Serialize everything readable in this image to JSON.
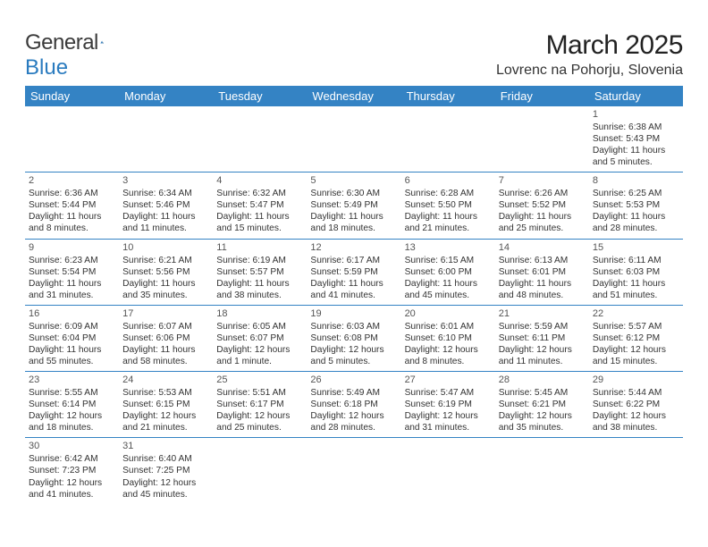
{
  "logo": {
    "text1": "General",
    "text2": "Blue"
  },
  "title": "March 2025",
  "subtitle": "Lovrenc na Pohorju, Slovenia",
  "colors": {
    "header_bg": "#3483c4",
    "header_fg": "#ffffff",
    "rule": "#3483c4",
    "title_color": "#222222",
    "text_color": "#333333",
    "logo_gray": "#3a3a3a",
    "logo_blue": "#2a7bbf"
  },
  "day_headers": [
    "Sunday",
    "Monday",
    "Tuesday",
    "Wednesday",
    "Thursday",
    "Friday",
    "Saturday"
  ],
  "weeks": [
    [
      null,
      null,
      null,
      null,
      null,
      null,
      {
        "n": "1",
        "sr": "Sunrise: 6:38 AM",
        "ss": "Sunset: 5:43 PM",
        "dl": "Daylight: 11 hours and 5 minutes."
      }
    ],
    [
      {
        "n": "2",
        "sr": "Sunrise: 6:36 AM",
        "ss": "Sunset: 5:44 PM",
        "dl": "Daylight: 11 hours and 8 minutes."
      },
      {
        "n": "3",
        "sr": "Sunrise: 6:34 AM",
        "ss": "Sunset: 5:46 PM",
        "dl": "Daylight: 11 hours and 11 minutes."
      },
      {
        "n": "4",
        "sr": "Sunrise: 6:32 AM",
        "ss": "Sunset: 5:47 PM",
        "dl": "Daylight: 11 hours and 15 minutes."
      },
      {
        "n": "5",
        "sr": "Sunrise: 6:30 AM",
        "ss": "Sunset: 5:49 PM",
        "dl": "Daylight: 11 hours and 18 minutes."
      },
      {
        "n": "6",
        "sr": "Sunrise: 6:28 AM",
        "ss": "Sunset: 5:50 PM",
        "dl": "Daylight: 11 hours and 21 minutes."
      },
      {
        "n": "7",
        "sr": "Sunrise: 6:26 AM",
        "ss": "Sunset: 5:52 PM",
        "dl": "Daylight: 11 hours and 25 minutes."
      },
      {
        "n": "8",
        "sr": "Sunrise: 6:25 AM",
        "ss": "Sunset: 5:53 PM",
        "dl": "Daylight: 11 hours and 28 minutes."
      }
    ],
    [
      {
        "n": "9",
        "sr": "Sunrise: 6:23 AM",
        "ss": "Sunset: 5:54 PM",
        "dl": "Daylight: 11 hours and 31 minutes."
      },
      {
        "n": "10",
        "sr": "Sunrise: 6:21 AM",
        "ss": "Sunset: 5:56 PM",
        "dl": "Daylight: 11 hours and 35 minutes."
      },
      {
        "n": "11",
        "sr": "Sunrise: 6:19 AM",
        "ss": "Sunset: 5:57 PM",
        "dl": "Daylight: 11 hours and 38 minutes."
      },
      {
        "n": "12",
        "sr": "Sunrise: 6:17 AM",
        "ss": "Sunset: 5:59 PM",
        "dl": "Daylight: 11 hours and 41 minutes."
      },
      {
        "n": "13",
        "sr": "Sunrise: 6:15 AM",
        "ss": "Sunset: 6:00 PM",
        "dl": "Daylight: 11 hours and 45 minutes."
      },
      {
        "n": "14",
        "sr": "Sunrise: 6:13 AM",
        "ss": "Sunset: 6:01 PM",
        "dl": "Daylight: 11 hours and 48 minutes."
      },
      {
        "n": "15",
        "sr": "Sunrise: 6:11 AM",
        "ss": "Sunset: 6:03 PM",
        "dl": "Daylight: 11 hours and 51 minutes."
      }
    ],
    [
      {
        "n": "16",
        "sr": "Sunrise: 6:09 AM",
        "ss": "Sunset: 6:04 PM",
        "dl": "Daylight: 11 hours and 55 minutes."
      },
      {
        "n": "17",
        "sr": "Sunrise: 6:07 AM",
        "ss": "Sunset: 6:06 PM",
        "dl": "Daylight: 11 hours and 58 minutes."
      },
      {
        "n": "18",
        "sr": "Sunrise: 6:05 AM",
        "ss": "Sunset: 6:07 PM",
        "dl": "Daylight: 12 hours and 1 minute."
      },
      {
        "n": "19",
        "sr": "Sunrise: 6:03 AM",
        "ss": "Sunset: 6:08 PM",
        "dl": "Daylight: 12 hours and 5 minutes."
      },
      {
        "n": "20",
        "sr": "Sunrise: 6:01 AM",
        "ss": "Sunset: 6:10 PM",
        "dl": "Daylight: 12 hours and 8 minutes."
      },
      {
        "n": "21",
        "sr": "Sunrise: 5:59 AM",
        "ss": "Sunset: 6:11 PM",
        "dl": "Daylight: 12 hours and 11 minutes."
      },
      {
        "n": "22",
        "sr": "Sunrise: 5:57 AM",
        "ss": "Sunset: 6:12 PM",
        "dl": "Daylight: 12 hours and 15 minutes."
      }
    ],
    [
      {
        "n": "23",
        "sr": "Sunrise: 5:55 AM",
        "ss": "Sunset: 6:14 PM",
        "dl": "Daylight: 12 hours and 18 minutes."
      },
      {
        "n": "24",
        "sr": "Sunrise: 5:53 AM",
        "ss": "Sunset: 6:15 PM",
        "dl": "Daylight: 12 hours and 21 minutes."
      },
      {
        "n": "25",
        "sr": "Sunrise: 5:51 AM",
        "ss": "Sunset: 6:17 PM",
        "dl": "Daylight: 12 hours and 25 minutes."
      },
      {
        "n": "26",
        "sr": "Sunrise: 5:49 AM",
        "ss": "Sunset: 6:18 PM",
        "dl": "Daylight: 12 hours and 28 minutes."
      },
      {
        "n": "27",
        "sr": "Sunrise: 5:47 AM",
        "ss": "Sunset: 6:19 PM",
        "dl": "Daylight: 12 hours and 31 minutes."
      },
      {
        "n": "28",
        "sr": "Sunrise: 5:45 AM",
        "ss": "Sunset: 6:21 PM",
        "dl": "Daylight: 12 hours and 35 minutes."
      },
      {
        "n": "29",
        "sr": "Sunrise: 5:44 AM",
        "ss": "Sunset: 6:22 PM",
        "dl": "Daylight: 12 hours and 38 minutes."
      }
    ],
    [
      {
        "n": "30",
        "sr": "Sunrise: 6:42 AM",
        "ss": "Sunset: 7:23 PM",
        "dl": "Daylight: 12 hours and 41 minutes."
      },
      {
        "n": "31",
        "sr": "Sunrise: 6:40 AM",
        "ss": "Sunset: 7:25 PM",
        "dl": "Daylight: 12 hours and 45 minutes."
      },
      null,
      null,
      null,
      null,
      null
    ]
  ]
}
